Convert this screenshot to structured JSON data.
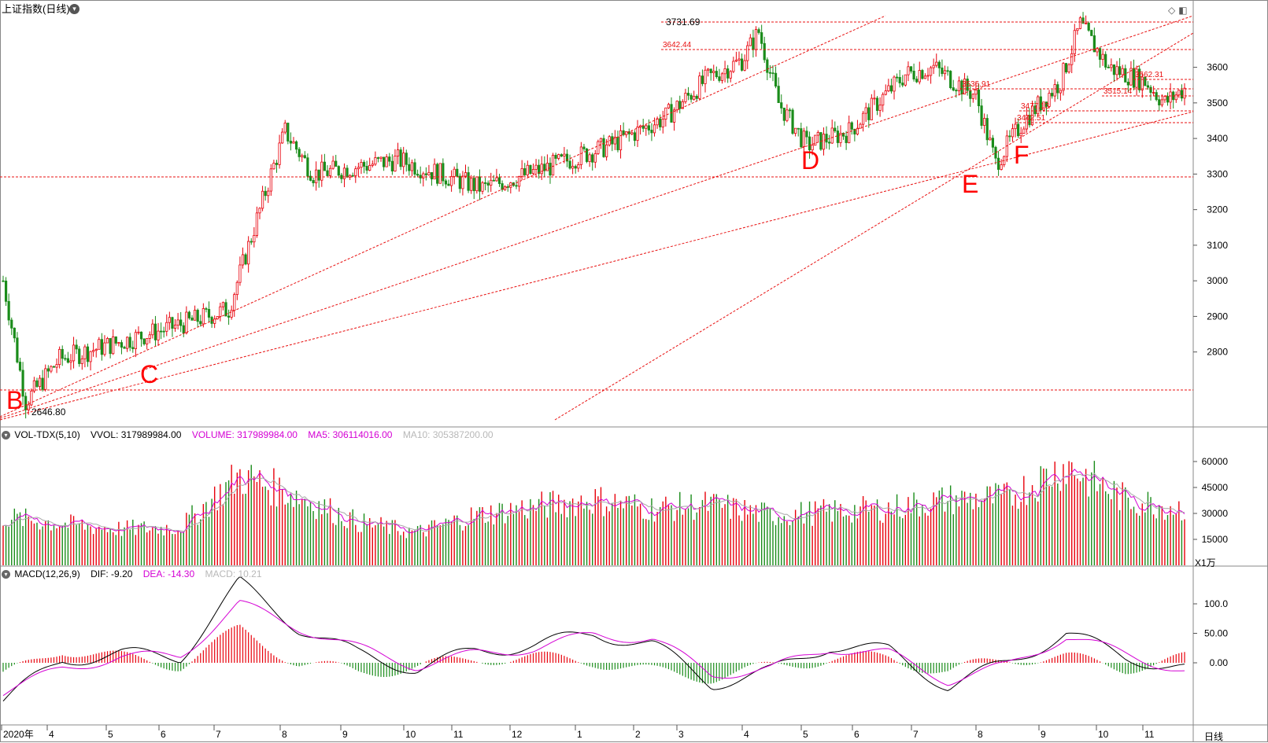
{
  "header": {
    "title": "上证指数(日线)",
    "menu_icon": "chevron-down-icon",
    "tr_icons": [
      "diamond-icon",
      "window-icon"
    ]
  },
  "price_axis": {
    "ticks": [
      "3600",
      "3500",
      "3400",
      "3300",
      "3200",
      "3100",
      "3000",
      "2900",
      "2800"
    ]
  },
  "annotations": {
    "high": "3731.69",
    "low": "2646.80",
    "levels": [
      "3642.44",
      "3536.91",
      "3562.31",
      "3515.14",
      "3477.13",
      "3442.51"
    ],
    "letters": [
      "B",
      "C",
      "D",
      "E",
      "F"
    ]
  },
  "volume_panel": {
    "name": "VOL-TDX(5,10)",
    "vvol": "VVOL: 317989984.00",
    "volume": "VOLUME: 317989984.00",
    "ma5": "MA5: 306114016.00",
    "ma10": "MA10: 305387200.00",
    "ticks": [
      "60000",
      "45000",
      "30000",
      "15000"
    ],
    "unit": "X1万"
  },
  "macd_panel": {
    "name": "MACD(12,26,9)",
    "dif": "DIF: -9.20",
    "dea": "DEA: -14.30",
    "macd": "MACD: 10.21",
    "ticks": [
      "100.0",
      "50.00",
      "0.00"
    ]
  },
  "time_axis": {
    "labels": [
      "2020年",
      "4",
      "5",
      "6",
      "7",
      "8",
      "9",
      "10",
      "11",
      "12",
      "1",
      "2",
      "3",
      "4",
      "5",
      "6",
      "7",
      "8",
      "9",
      "10",
      "11"
    ],
    "period_button": "日线"
  },
  "colors": {
    "up": "#e8000b",
    "down": "#1a8c1a",
    "line": "#000000",
    "ma": "#d400d4",
    "ma10": "#a9a9a9",
    "level": "#e81010",
    "letter": "#ff0000"
  },
  "chart_data": [
    {
      "type": "candlestick",
      "title": "上证指数(日线)",
      "x": [
        "2020-03",
        "2020-04",
        "2020-05",
        "2020-06",
        "2020-07",
        "2020-08",
        "2020-09",
        "2020-10",
        "2020-11",
        "2020-12",
        "2021-01",
        "2021-02",
        "2021-03",
        "2021-04",
        "2021-05",
        "2021-06",
        "2021-07",
        "2021-08",
        "2021-09",
        "2021-10",
        "2021-11"
      ],
      "series": [
        {
          "values": [
            2760,
            2830,
            2860,
            2960,
            3330,
            3390,
            3260,
            3280,
            3350,
            3420,
            3550,
            3640,
            3430,
            3410,
            3580,
            3540,
            3440,
            3500,
            3620,
            3560,
            3530
          ]
        }
      ],
      "ylim": [
        2640,
        3780
      ],
      "annotations": {
        "high": 3731.69,
        "low": 2646.8,
        "levels": [
          3642.44,
          3562.31,
          3536.91,
          3515.14,
          3477.13,
          3442.51
        ]
      }
    },
    {
      "type": "bar",
      "series": [
        {
          "name": "VOLUME",
          "values": [
            28000,
            24000,
            21000,
            22000,
            52000,
            40000,
            25000,
            19000,
            29000,
            34000,
            38000,
            33000,
            35000,
            29000,
            31000,
            33000,
            38000,
            39000,
            58000,
            38000,
            33000
          ]
        }
      ],
      "ylim": [
        0,
        70000
      ],
      "unit": "X1万"
    },
    {
      "type": "line",
      "series": [
        {
          "name": "DIF",
          "values": [
            -65,
            5,
            15,
            10,
            135,
            60,
            15,
            -10,
            20,
            30,
            50,
            30,
            -35,
            -15,
            30,
            20,
            -40,
            0,
            50,
            10,
            -10
          ]
        },
        {
          "name": "DEA",
          "values": [
            -50,
            -10,
            10,
            12,
            100,
            60,
            25,
            -5,
            15,
            25,
            48,
            40,
            -20,
            -10,
            25,
            15,
            -30,
            -5,
            45,
            15,
            -14
          ]
        }
      ],
      "ylim": [
        -80,
        140
      ]
    }
  ]
}
